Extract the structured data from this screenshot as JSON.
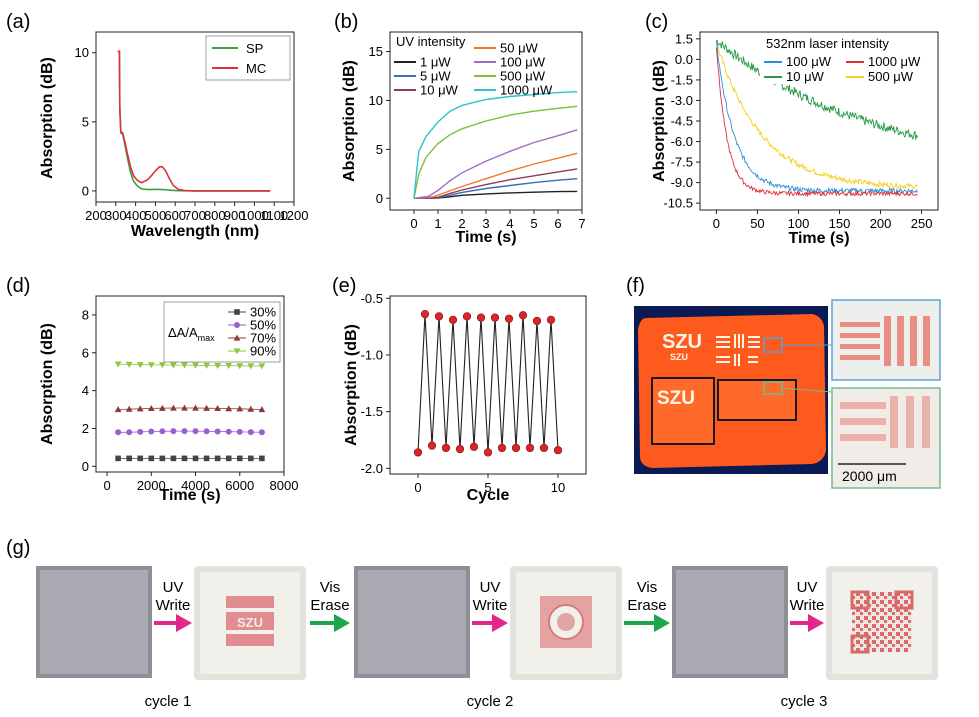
{
  "panels": {
    "a": {
      "label": "(a)",
      "chart_data": {
        "type": "line",
        "xlabel": "Wavelength (nm)",
        "ylabel": "Absorption (dB)",
        "xlim": [
          200,
          1200
        ],
        "ylim": [
          -0.8,
          11.5
        ],
        "xticks": [
          200,
          300,
          400,
          500,
          600,
          700,
          800,
          900,
          1000,
          1100,
          1200
        ],
        "yticks": [
          0,
          5,
          10
        ],
        "legend_position": "top-right",
        "series": [
          {
            "name": "SP",
            "color": "#35a34a",
            "points": [
              [
                310,
                10.1
              ],
              [
                318,
                10.1
              ],
              [
                320,
                6.0
              ],
              [
                325,
                4.2
              ],
              [
                335,
                4.1
              ],
              [
                345,
                3.4
              ],
              [
                360,
                2.3
              ],
              [
                375,
                1.3
              ],
              [
                390,
                0.7
              ],
              [
                410,
                0.35
              ],
              [
                430,
                0.15
              ],
              [
                460,
                0.1
              ],
              [
                500,
                0.12
              ],
              [
                540,
                0.1
              ],
              [
                580,
                0.05
              ],
              [
                620,
                0.02
              ],
              [
                700,
                0.0
              ],
              [
                800,
                0.0
              ],
              [
                1000,
                0.0
              ],
              [
                1080,
                0.0
              ]
            ]
          },
          {
            "name": "MC",
            "color": "#e0303a",
            "points": [
              [
                310,
                10.1
              ],
              [
                318,
                10.1
              ],
              [
                320,
                6.0
              ],
              [
                325,
                4.3
              ],
              [
                335,
                4.2
              ],
              [
                345,
                3.6
              ],
              [
                360,
                2.6
              ],
              [
                375,
                1.7
              ],
              [
                390,
                1.1
              ],
              [
                410,
                0.75
              ],
              [
                430,
                0.6
              ],
              [
                460,
                0.8
              ],
              [
                480,
                1.1
              ],
              [
                500,
                1.45
              ],
              [
                520,
                1.75
              ],
              [
                535,
                1.75
              ],
              [
                550,
                1.5
              ],
              [
                570,
                0.9
              ],
              [
                590,
                0.4
              ],
              [
                615,
                0.12
              ],
              [
                650,
                0.03
              ],
              [
                700,
                0.0
              ],
              [
                800,
                0.0
              ],
              [
                1000,
                0.0
              ],
              [
                1080,
                0.0
              ]
            ]
          }
        ]
      }
    },
    "b": {
      "label": "(b)",
      "chart_data": {
        "type": "line",
        "xlabel": "Time (s)",
        "ylabel": "Absorption (dB)",
        "xlim": [
          -1,
          7
        ],
        "ylim": [
          -1.2,
          17
        ],
        "xticks": [
          0,
          1,
          2,
          3,
          4,
          5,
          6,
          7
        ],
        "yticks": [
          0,
          5,
          10,
          15
        ],
        "legend_title": "UV intensity",
        "legend_position": "top-left",
        "series": [
          {
            "name": "1 μW",
            "color": "#222222",
            "points": [
              [
                0,
                0
              ],
              [
                1,
                0.02
              ],
              [
                1.5,
                0.15
              ],
              [
                2,
                0.3
              ],
              [
                3,
                0.45
              ],
              [
                4,
                0.55
              ],
              [
                5,
                0.62
              ],
              [
                6,
                0.68
              ],
              [
                6.8,
                0.7
              ]
            ]
          },
          {
            "name": "5 μW",
            "color": "#3a6fb5",
            "points": [
              [
                0,
                0
              ],
              [
                1,
                0.05
              ],
              [
                1.5,
                0.3
              ],
              [
                2,
                0.6
              ],
              [
                3,
                1.0
              ],
              [
                4,
                1.3
              ],
              [
                5,
                1.6
              ],
              [
                6,
                1.85
              ],
              [
                6.8,
                2.0
              ]
            ]
          },
          {
            "name": "10 μW",
            "color": "#8e3a64",
            "points": [
              [
                0,
                0
              ],
              [
                1,
                0.1
              ],
              [
                1.5,
                0.5
              ],
              [
                2,
                0.85
              ],
              [
                3,
                1.4
              ],
              [
                4,
                1.9
              ],
              [
                5,
                2.3
              ],
              [
                6,
                2.7
              ],
              [
                6.8,
                3.0
              ]
            ]
          },
          {
            "name": "50 μW",
            "color": "#f07a28",
            "points": [
              [
                0,
                0
              ],
              [
                0.8,
                0.15
              ],
              [
                1.2,
                0.5
              ],
              [
                2,
                1.2
              ],
              [
                3,
                2.0
              ],
              [
                4,
                2.8
              ],
              [
                5,
                3.5
              ],
              [
                6,
                4.1
              ],
              [
                6.8,
                4.6
              ]
            ]
          },
          {
            "name": "100 μW",
            "color": "#9b6fc7",
            "points": [
              [
                0,
                0
              ],
              [
                0.6,
                0.2
              ],
              [
                1,
                0.8
              ],
              [
                1.5,
                1.8
              ],
              [
                2,
                2.6
              ],
              [
                3,
                3.8
              ],
              [
                4,
                4.8
              ],
              [
                5,
                5.7
              ],
              [
                6,
                6.4
              ],
              [
                6.8,
                7.0
              ]
            ]
          },
          {
            "name": "500 μW",
            "color": "#7dbf3a",
            "points": [
              [
                0,
                0
              ],
              [
                0.2,
                2.5
              ],
              [
                0.5,
                4.2
              ],
              [
                1,
                5.6
              ],
              [
                1.5,
                6.5
              ],
              [
                2,
                7.1
              ],
              [
                3,
                7.9
              ],
              [
                4,
                8.5
              ],
              [
                5,
                8.9
              ],
              [
                6,
                9.2
              ],
              [
                6.8,
                9.4
              ]
            ]
          },
          {
            "name": "1000 μW",
            "color": "#2ec4c8",
            "points": [
              [
                0,
                0
              ],
              [
                0.1,
                2.5
              ],
              [
                0.2,
                4.8
              ],
              [
                0.5,
                6.3
              ],
              [
                1,
                7.8
              ],
              [
                1.5,
                8.9
              ],
              [
                2,
                9.5
              ],
              [
                3,
                10.1
              ],
              [
                4,
                10.4
              ],
              [
                5,
                10.6
              ],
              [
                6,
                10.8
              ],
              [
                6.8,
                10.9
              ]
            ]
          }
        ]
      }
    },
    "c": {
      "label": "(c)",
      "chart_data": {
        "type": "line",
        "xlabel": "Time (s)",
        "ylabel": "Absorption (dB)",
        "xlim": [
          -20,
          270
        ],
        "ylim": [
          -11,
          2
        ],
        "xticks": [
          0,
          50,
          100,
          150,
          200,
          250
        ],
        "yticks": [
          1.5,
          0.0,
          -1.5,
          -3.0,
          -4.5,
          -6.0,
          -7.5,
          -9.0,
          -10.5
        ],
        "legend_title": "532nm laser intensity",
        "legend_position": "top-right",
        "series": [
          {
            "name": "100 μW",
            "color": "#2b8fd6"
          },
          {
            "name": "1000 μW",
            "color": "#e0303a"
          },
          {
            "name": "10 μW",
            "color": "#2a9a4a"
          },
          {
            "name": "500 μW",
            "color": "#f2d21c"
          }
        ]
      }
    },
    "d": {
      "label": "(d)",
      "chart_data": {
        "type": "scatter",
        "xlabel": "Time (s)",
        "ylabel": "Absorption (dB)",
        "xlim": [
          -500,
          8000
        ],
        "ylim": [
          -0.3,
          9
        ],
        "xticks": [
          0,
          2000,
          4000,
          6000,
          8000
        ],
        "yticks": [
          0,
          2,
          4,
          6,
          8
        ],
        "legend_title_main": "ΔA/A",
        "legend_title_sub": "max",
        "legend_position": "top-right",
        "x": [
          500,
          1000,
          1500,
          2000,
          2500,
          3000,
          3500,
          4000,
          4500,
          5000,
          5500,
          6000,
          6500,
          7000
        ],
        "series": [
          {
            "name": "30%",
            "color": "#444444",
            "marker": "square",
            "values": [
              0.42,
              0.42,
              0.42,
              0.42,
              0.42,
              0.42,
              0.42,
              0.42,
              0.42,
              0.42,
              0.42,
              0.42,
              0.42,
              0.42
            ]
          },
          {
            "name": "50%",
            "color": "#9b5fd0",
            "marker": "circle",
            "values": [
              1.8,
              1.8,
              1.82,
              1.84,
              1.85,
              1.86,
              1.86,
              1.86,
              1.85,
              1.84,
              1.83,
              1.82,
              1.81,
              1.8
            ]
          },
          {
            "name": "70%",
            "color": "#8a3a3a",
            "marker": "triangle-up",
            "values": [
              3.0,
              3.02,
              3.04,
              3.06,
              3.07,
              3.08,
              3.08,
              3.08,
              3.07,
              3.06,
              3.05,
              3.04,
              3.02,
              3.0
            ]
          },
          {
            "name": "90%",
            "color": "#8cc63f",
            "marker": "triangle-down",
            "values": [
              5.4,
              5.38,
              5.37,
              5.36,
              5.36,
              5.35,
              5.35,
              5.34,
              5.33,
              5.32,
              5.32,
              5.31,
              5.3,
              5.3
            ]
          }
        ]
      }
    },
    "e": {
      "label": "(e)",
      "chart_data": {
        "type": "line",
        "xlabel": "Cycle",
        "ylabel": "Absorption (dB)",
        "xlim": [
          -2,
          12
        ],
        "ylim": [
          -2.05,
          -0.48
        ],
        "xticks": [
          0,
          5,
          10
        ],
        "yticks": [
          -0.5,
          -1.0,
          -1.5,
          -2.0
        ],
        "x": [
          0,
          0.5,
          1,
          1.5,
          2,
          2.5,
          3,
          3.5,
          4,
          4.5,
          5,
          5.5,
          6,
          6.5,
          7,
          7.5,
          8,
          8.5,
          9,
          9.5,
          10
        ],
        "series": [
          {
            "color": "#222222",
            "marker_color": "#d9262b",
            "values": [
              -1.86,
              -0.64,
              -1.8,
              -0.66,
              -1.82,
              -0.69,
              -1.83,
              -0.66,
              -1.81,
              -0.67,
              -1.86,
              -0.67,
              -1.82,
              -0.68,
              -1.82,
              -0.65,
              -1.82,
              -0.7,
              -1.82,
              -0.69,
              -1.84
            ]
          }
        ]
      }
    },
    "f": {
      "label": "(f)",
      "brand_text": "SZU",
      "scale_bar": "2000 μm",
      "colors": {
        "film": "#ff5a1e",
        "background": "#0a1a55",
        "inset_border_top": "#5aa0d8",
        "inset_border_bottom": "#6cc08a"
      }
    },
    "g": {
      "label": "(g)",
      "steps": [
        {
          "l1": "UV",
          "l2": "Write",
          "arrow_color": "#e2268a"
        },
        {
          "l1": "Vis",
          "l2": "Erase",
          "arrow_color": "#1fa64a"
        },
        {
          "l1": "UV",
          "l2": "Write",
          "arrow_color": "#e2268a"
        },
        {
          "l1": "Vis",
          "l2": "Erase",
          "arrow_color": "#1fa64a"
        },
        {
          "l1": "UV",
          "l2": "Write",
          "arrow_color": "#e2268a"
        }
      ],
      "written_text": "SZU",
      "cycles": [
        "cycle 1",
        "cycle 2",
        "cycle 3"
      ]
    }
  }
}
